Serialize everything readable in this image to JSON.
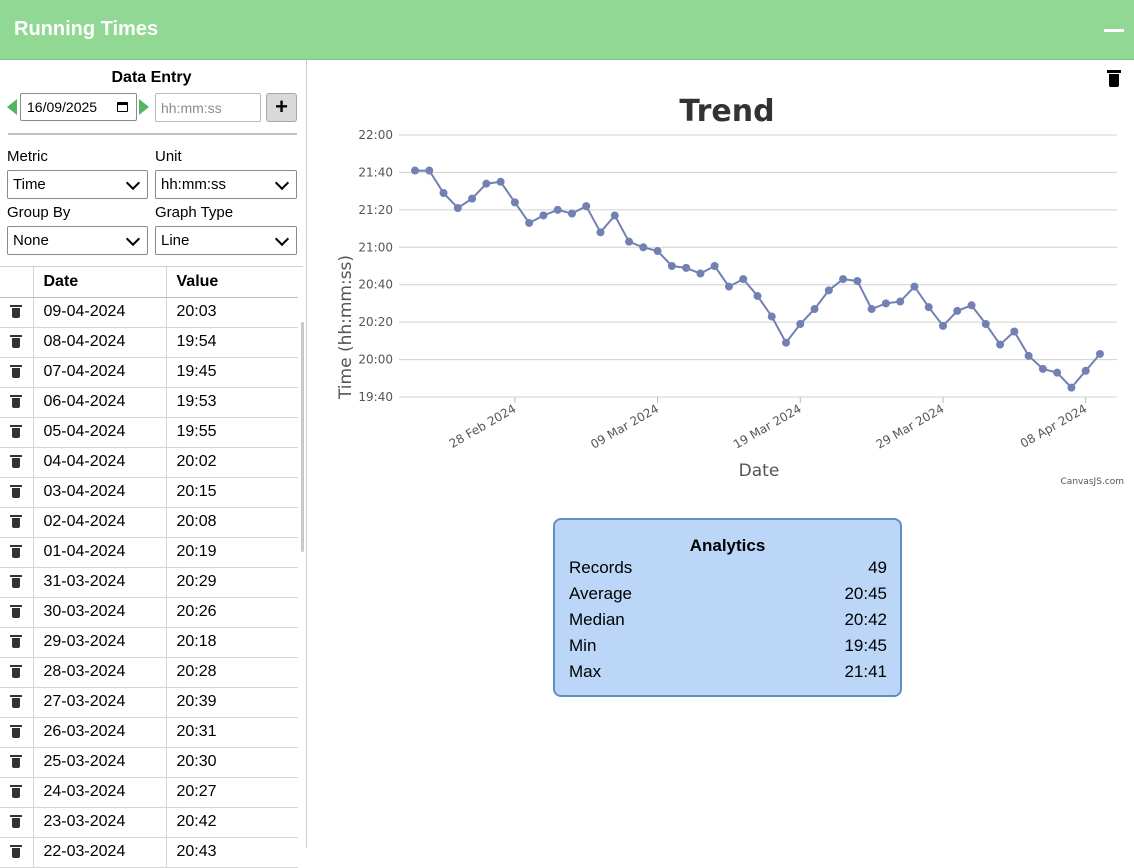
{
  "app": {
    "title": "Running Times"
  },
  "entry": {
    "title": "Data Entry",
    "date_value": "16/09/2025",
    "time_placeholder": "hh:mm:ss",
    "add_label": "+"
  },
  "controls": {
    "metric_label": "Metric",
    "metric_value": "Time",
    "unit_label": "Unit",
    "unit_value": "hh:mm:ss",
    "group_label": "Group By",
    "group_value": "None",
    "graph_label": "Graph Type",
    "graph_value": "Line"
  },
  "table": {
    "headers": [
      "",
      "Date",
      "Value"
    ],
    "rows": [
      {
        "date": "09-04-2024",
        "value": "20:03"
      },
      {
        "date": "08-04-2024",
        "value": "19:54"
      },
      {
        "date": "07-04-2024",
        "value": "19:45"
      },
      {
        "date": "06-04-2024",
        "value": "19:53"
      },
      {
        "date": "05-04-2024",
        "value": "19:55"
      },
      {
        "date": "04-04-2024",
        "value": "20:02"
      },
      {
        "date": "03-04-2024",
        "value": "20:15"
      },
      {
        "date": "02-04-2024",
        "value": "20:08"
      },
      {
        "date": "01-04-2024",
        "value": "20:19"
      },
      {
        "date": "31-03-2024",
        "value": "20:29"
      },
      {
        "date": "30-03-2024",
        "value": "20:26"
      },
      {
        "date": "29-03-2024",
        "value": "20:18"
      },
      {
        "date": "28-03-2024",
        "value": "20:28"
      },
      {
        "date": "27-03-2024",
        "value": "20:39"
      },
      {
        "date": "26-03-2024",
        "value": "20:31"
      },
      {
        "date": "25-03-2024",
        "value": "20:30"
      },
      {
        "date": "24-03-2024",
        "value": "20:27"
      },
      {
        "date": "23-03-2024",
        "value": "20:42"
      },
      {
        "date": "22-03-2024",
        "value": "20:43"
      }
    ]
  },
  "chart_data": {
    "type": "line",
    "title": "Trend",
    "xlabel": "Date",
    "ylabel": "Time (hh:mm:ss)",
    "y_ticks": [
      "19:40",
      "20:00",
      "20:20",
      "20:40",
      "21:00",
      "21:20",
      "21:40",
      "22:00"
    ],
    "x_ticks": [
      "28 Feb 2024",
      "09 Mar 2024",
      "19 Mar 2024",
      "29 Mar 2024",
      "08 Apr 2024"
    ],
    "ylim": [
      "19:40",
      "22:00"
    ],
    "grid": true,
    "line_color": "#7280b3",
    "credit": "CanvasJS.com",
    "series": [
      {
        "points": [
          {
            "x": "2024-02-21",
            "y": "21:41"
          },
          {
            "x": "2024-02-22",
            "y": "21:41"
          },
          {
            "x": "2024-02-23",
            "y": "21:29"
          },
          {
            "x": "2024-02-24",
            "y": "21:21"
          },
          {
            "x": "2024-02-25",
            "y": "21:26"
          },
          {
            "x": "2024-02-26",
            "y": "21:34"
          },
          {
            "x": "2024-02-27",
            "y": "21:35"
          },
          {
            "x": "2024-02-28",
            "y": "21:24"
          },
          {
            "x": "2024-02-29",
            "y": "21:13"
          },
          {
            "x": "2024-03-01",
            "y": "21:17"
          },
          {
            "x": "2024-03-02",
            "y": "21:20"
          },
          {
            "x": "2024-03-03",
            "y": "21:18"
          },
          {
            "x": "2024-03-04",
            "y": "21:22"
          },
          {
            "x": "2024-03-05",
            "y": "21:08"
          },
          {
            "x": "2024-03-06",
            "y": "21:17"
          },
          {
            "x": "2024-03-07",
            "y": "21:03"
          },
          {
            "x": "2024-03-08",
            "y": "21:00"
          },
          {
            "x": "2024-03-09",
            "y": "20:58"
          },
          {
            "x": "2024-03-10",
            "y": "20:50"
          },
          {
            "x": "2024-03-11",
            "y": "20:49"
          },
          {
            "x": "2024-03-12",
            "y": "20:46"
          },
          {
            "x": "2024-03-13",
            "y": "20:50"
          },
          {
            "x": "2024-03-14",
            "y": "20:39"
          },
          {
            "x": "2024-03-15",
            "y": "20:43"
          },
          {
            "x": "2024-03-16",
            "y": "20:34"
          },
          {
            "x": "2024-03-17",
            "y": "20:23"
          },
          {
            "x": "2024-03-18",
            "y": "20:09"
          },
          {
            "x": "2024-03-19",
            "y": "20:19"
          },
          {
            "x": "2024-03-20",
            "y": "20:27"
          },
          {
            "x": "2024-03-21",
            "y": "20:37"
          },
          {
            "x": "2024-03-22",
            "y": "20:43"
          },
          {
            "x": "2024-03-23",
            "y": "20:42"
          },
          {
            "x": "2024-03-24",
            "y": "20:27"
          },
          {
            "x": "2024-03-25",
            "y": "20:30"
          },
          {
            "x": "2024-03-26",
            "y": "20:31"
          },
          {
            "x": "2024-03-27",
            "y": "20:39"
          },
          {
            "x": "2024-03-28",
            "y": "20:28"
          },
          {
            "x": "2024-03-29",
            "y": "20:18"
          },
          {
            "x": "2024-03-30",
            "y": "20:26"
          },
          {
            "x": "2024-03-31",
            "y": "20:29"
          },
          {
            "x": "2024-04-01",
            "y": "20:19"
          },
          {
            "x": "2024-04-02",
            "y": "20:08"
          },
          {
            "x": "2024-04-03",
            "y": "20:15"
          },
          {
            "x": "2024-04-04",
            "y": "20:02"
          },
          {
            "x": "2024-04-05",
            "y": "19:55"
          },
          {
            "x": "2024-04-06",
            "y": "19:53"
          },
          {
            "x": "2024-04-07",
            "y": "19:45"
          },
          {
            "x": "2024-04-08",
            "y": "19:54"
          },
          {
            "x": "2024-04-09",
            "y": "20:03"
          }
        ]
      }
    ]
  },
  "analytics": {
    "title": "Analytics",
    "rows": [
      {
        "label": "Records",
        "value": "49"
      },
      {
        "label": "Average",
        "value": "20:45"
      },
      {
        "label": "Median",
        "value": "20:42"
      },
      {
        "label": "Min",
        "value": "19:45"
      },
      {
        "label": "Max",
        "value": "21:41"
      }
    ]
  }
}
